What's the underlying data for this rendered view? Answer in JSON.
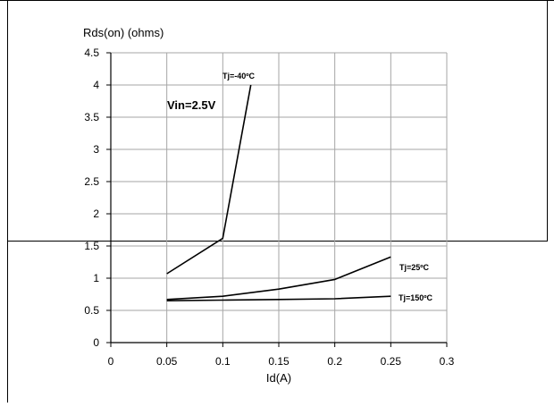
{
  "chart_data": {
    "type": "line",
    "title": "",
    "ylabel": "Rds(on) (ohms)",
    "xlabel": "Id(A)",
    "xlim": [
      0,
      0.3
    ],
    "ylim": [
      0,
      4.5
    ],
    "x_ticks": [
      "0",
      "0.05",
      "0.1",
      "0.15",
      "0.2",
      "0.25",
      "0.3"
    ],
    "x_tick_values": [
      0,
      0.05,
      0.1,
      0.15,
      0.2,
      0.25,
      0.3
    ],
    "y_ticks": [
      "0",
      "0.5",
      "1",
      "1.5",
      "2",
      "2.5",
      "3",
      "3.5",
      "4",
      "4.5"
    ],
    "y_tick_values": [
      0,
      0.5,
      1,
      1.5,
      2,
      2.5,
      3,
      3.5,
      4,
      4.5
    ],
    "grid": true,
    "annotation": "Vin=2.5V",
    "series": [
      {
        "name": "Tj=-40ºC",
        "points": [
          [
            0.05,
            1.07
          ],
          [
            0.1,
            1.62
          ],
          [
            0.125,
            4.0
          ]
        ]
      },
      {
        "name": "Tj=25ºC",
        "points": [
          [
            0.05,
            0.67
          ],
          [
            0.1,
            0.72
          ],
          [
            0.15,
            0.83
          ],
          [
            0.2,
            0.98
          ],
          [
            0.25,
            1.33
          ]
        ]
      },
      {
        "name": "Tj=150ºC",
        "points": [
          [
            0.05,
            0.65
          ],
          [
            0.1,
            0.66
          ],
          [
            0.15,
            0.67
          ],
          [
            0.2,
            0.68
          ],
          [
            0.25,
            0.72
          ]
        ]
      }
    ]
  }
}
